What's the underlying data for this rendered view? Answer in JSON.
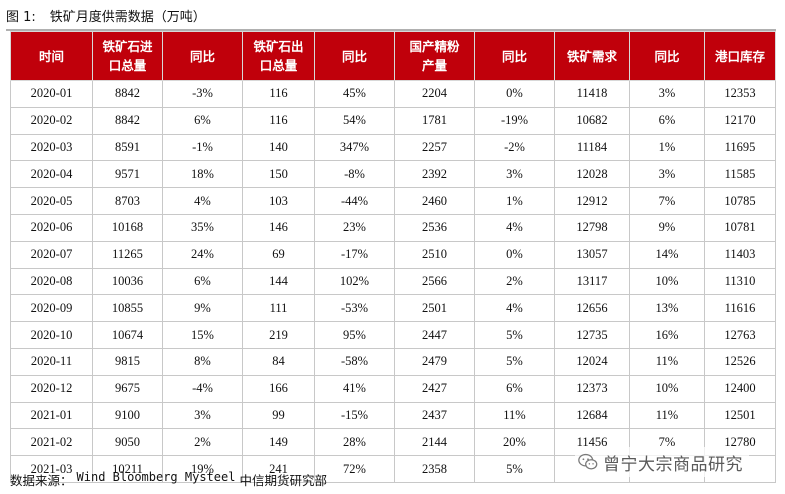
{
  "figure": {
    "label": "图 1:",
    "title": "铁矿月度供需数据（万吨）"
  },
  "table": {
    "headers": [
      [
        "时间"
      ],
      [
        "铁矿石进",
        "口总量"
      ],
      [
        "同比"
      ],
      [
        "铁矿石出",
        "口总量"
      ],
      [
        "同比"
      ],
      [
        "国产精粉",
        "产量"
      ],
      [
        "同比"
      ],
      [
        "铁矿需求"
      ],
      [
        "同比"
      ],
      [
        "港口库存"
      ]
    ],
    "rows": [
      [
        "2020-01",
        "8842",
        "-3%",
        "116",
        "45%",
        "2204",
        "0%",
        "11418",
        "3%",
        "12353"
      ],
      [
        "2020-02",
        "8842",
        "6%",
        "116",
        "54%",
        "1781",
        "-19%",
        "10682",
        "6%",
        "12170"
      ],
      [
        "2020-03",
        "8591",
        "-1%",
        "140",
        "347%",
        "2257",
        "-2%",
        "11184",
        "1%",
        "11695"
      ],
      [
        "2020-04",
        "9571",
        "18%",
        "150",
        "-8%",
        "2392",
        "3%",
        "12028",
        "3%",
        "11585"
      ],
      [
        "2020-05",
        "8703",
        "4%",
        "103",
        "-44%",
        "2460",
        "1%",
        "12912",
        "7%",
        "10785"
      ],
      [
        "2020-06",
        "10168",
        "35%",
        "146",
        "23%",
        "2536",
        "4%",
        "12798",
        "9%",
        "10781"
      ],
      [
        "2020-07",
        "11265",
        "24%",
        "69",
        "-17%",
        "2510",
        "0%",
        "13057",
        "14%",
        "11403"
      ],
      [
        "2020-08",
        "10036",
        "6%",
        "144",
        "102%",
        "2566",
        "2%",
        "13117",
        "10%",
        "11310"
      ],
      [
        "2020-09",
        "10855",
        "9%",
        "111",
        "-53%",
        "2501",
        "4%",
        "12656",
        "13%",
        "11616"
      ],
      [
        "2020-10",
        "10674",
        "15%",
        "219",
        "95%",
        "2447",
        "5%",
        "12735",
        "16%",
        "12763"
      ],
      [
        "2020-11",
        "9815",
        "8%",
        "84",
        "-58%",
        "2479",
        "5%",
        "12024",
        "11%",
        "12526"
      ],
      [
        "2020-12",
        "9675",
        "-4%",
        "166",
        "41%",
        "2427",
        "6%",
        "12373",
        "10%",
        "12400"
      ],
      [
        "2021-01",
        "9100",
        "3%",
        "99",
        "-15%",
        "2437",
        "11%",
        "12684",
        "11%",
        "12501"
      ],
      [
        "2021-02",
        "9050",
        "2%",
        "149",
        "28%",
        "2144",
        "20%",
        "11456",
        "7%",
        "12780"
      ],
      [
        "2021-03",
        "10211",
        "19%",
        "241",
        "72%",
        "2358",
        "5%",
        "",
        "",
        ""
      ]
    ]
  },
  "source": {
    "label": "数据来源：",
    "providers": "Wind Bloomberg Mysteel",
    "firm": "中信期货研究部"
  },
  "watermark": {
    "icon": "wechat-icon",
    "text": "曾宁大宗商品研究"
  }
}
